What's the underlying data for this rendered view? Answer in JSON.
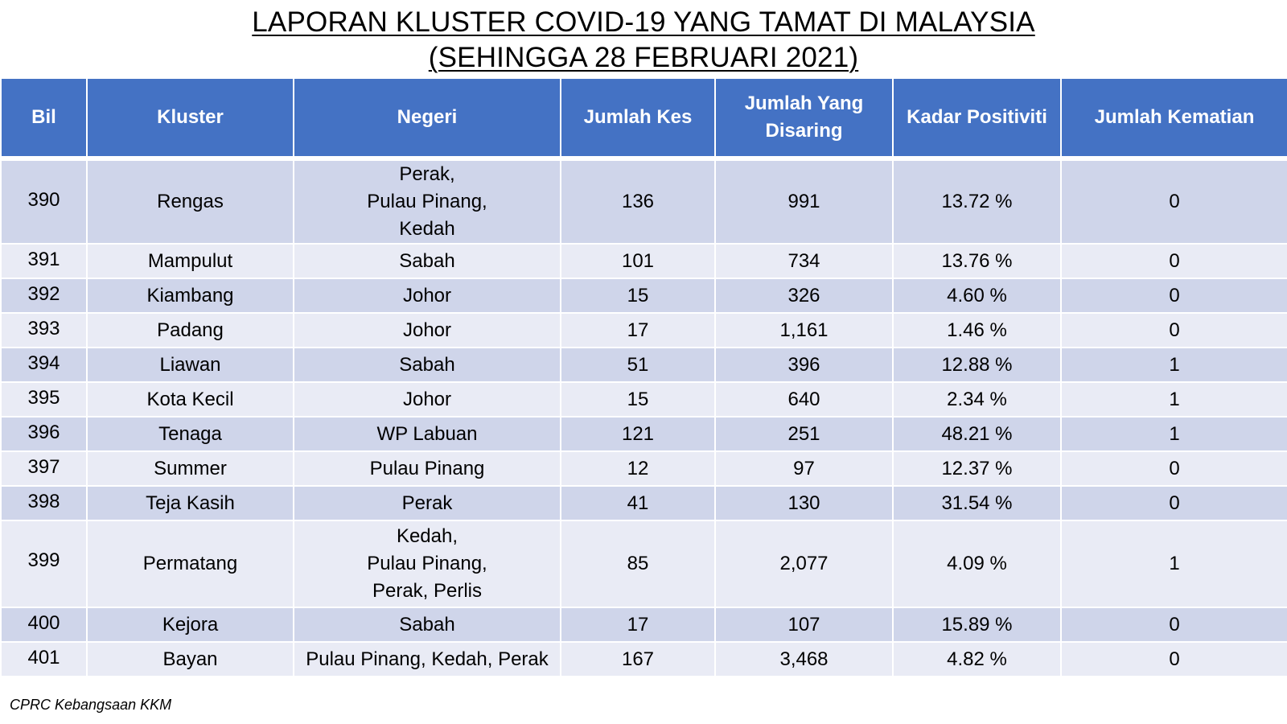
{
  "title": {
    "line1": "LAPORAN KLUSTER COVID-19 YANG TAMAT DI MALAYSIA",
    "line2": "(SEHINGGA 28 FEBRUARI 2021)"
  },
  "table": {
    "headers": [
      "Bil",
      "Kluster",
      "Negeri",
      "Jumlah Kes",
      "Jumlah Yang Disaring",
      "Kadar Positiviti",
      "Jumlah Kematian"
    ],
    "rows": [
      {
        "bil": "390",
        "kluster": "Rengas",
        "negeri": [
          "Perak,",
          "Pulau Pinang,",
          "Kedah"
        ],
        "kes": "136",
        "disaring": "991",
        "positiviti": "13.72 %",
        "kematian": "0"
      },
      {
        "bil": "391",
        "kluster": "Mampulut",
        "negeri": [
          "Sabah"
        ],
        "kes": "101",
        "disaring": "734",
        "positiviti": "13.76 %",
        "kematian": "0"
      },
      {
        "bil": "392",
        "kluster": "Kiambang",
        "negeri": [
          "Johor"
        ],
        "kes": "15",
        "disaring": "326",
        "positiviti": "4.60 %",
        "kematian": "0"
      },
      {
        "bil": "393",
        "kluster": "Padang",
        "negeri": [
          "Johor"
        ],
        "kes": "17",
        "disaring": "1,161",
        "positiviti": "1.46 %",
        "kematian": "0"
      },
      {
        "bil": "394",
        "kluster": "Liawan",
        "negeri": [
          "Sabah"
        ],
        "kes": "51",
        "disaring": "396",
        "positiviti": "12.88 %",
        "kematian": "1"
      },
      {
        "bil": "395",
        "kluster": "Kota Kecil",
        "negeri": [
          "Johor"
        ],
        "kes": "15",
        "disaring": "640",
        "positiviti": "2.34 %",
        "kematian": "1"
      },
      {
        "bil": "396",
        "kluster": "Tenaga",
        "negeri": [
          "WP Labuan"
        ],
        "kes": "121",
        "disaring": "251",
        "positiviti": "48.21 %",
        "kematian": "1"
      },
      {
        "bil": "397",
        "kluster": "Summer",
        "negeri": [
          "Pulau Pinang"
        ],
        "kes": "12",
        "disaring": "97",
        "positiviti": "12.37 %",
        "kematian": "0"
      },
      {
        "bil": "398",
        "kluster": "Teja Kasih",
        "negeri": [
          "Perak"
        ],
        "kes": "41",
        "disaring": "130",
        "positiviti": "31.54 %",
        "kematian": "0"
      },
      {
        "bil": "399",
        "kluster": "Permatang",
        "negeri": [
          "Kedah,",
          "Pulau Pinang,",
          "Perak, Perlis"
        ],
        "kes": "85",
        "disaring": "2,077",
        "positiviti": "4.09 %",
        "kematian": "1"
      },
      {
        "bil": "400",
        "kluster": "Kejora",
        "negeri": [
          "Sabah"
        ],
        "kes": "17",
        "disaring": "107",
        "positiviti": "15.89 %",
        "kematian": "0"
      },
      {
        "bil": "401",
        "kluster": "Bayan",
        "negeri": [
          "Pulau Pinang, Kedah, Perak"
        ],
        "kes": "167",
        "disaring": "3,468",
        "positiviti": "4.82 %",
        "kematian": "0"
      }
    ]
  },
  "footer": {
    "source": "CPRC Kebangsaan KKM"
  },
  "colors": {
    "header_bg": "#4472c4",
    "row_odd_bg": "#cfd5ea",
    "row_even_bg": "#e9ebf5"
  }
}
